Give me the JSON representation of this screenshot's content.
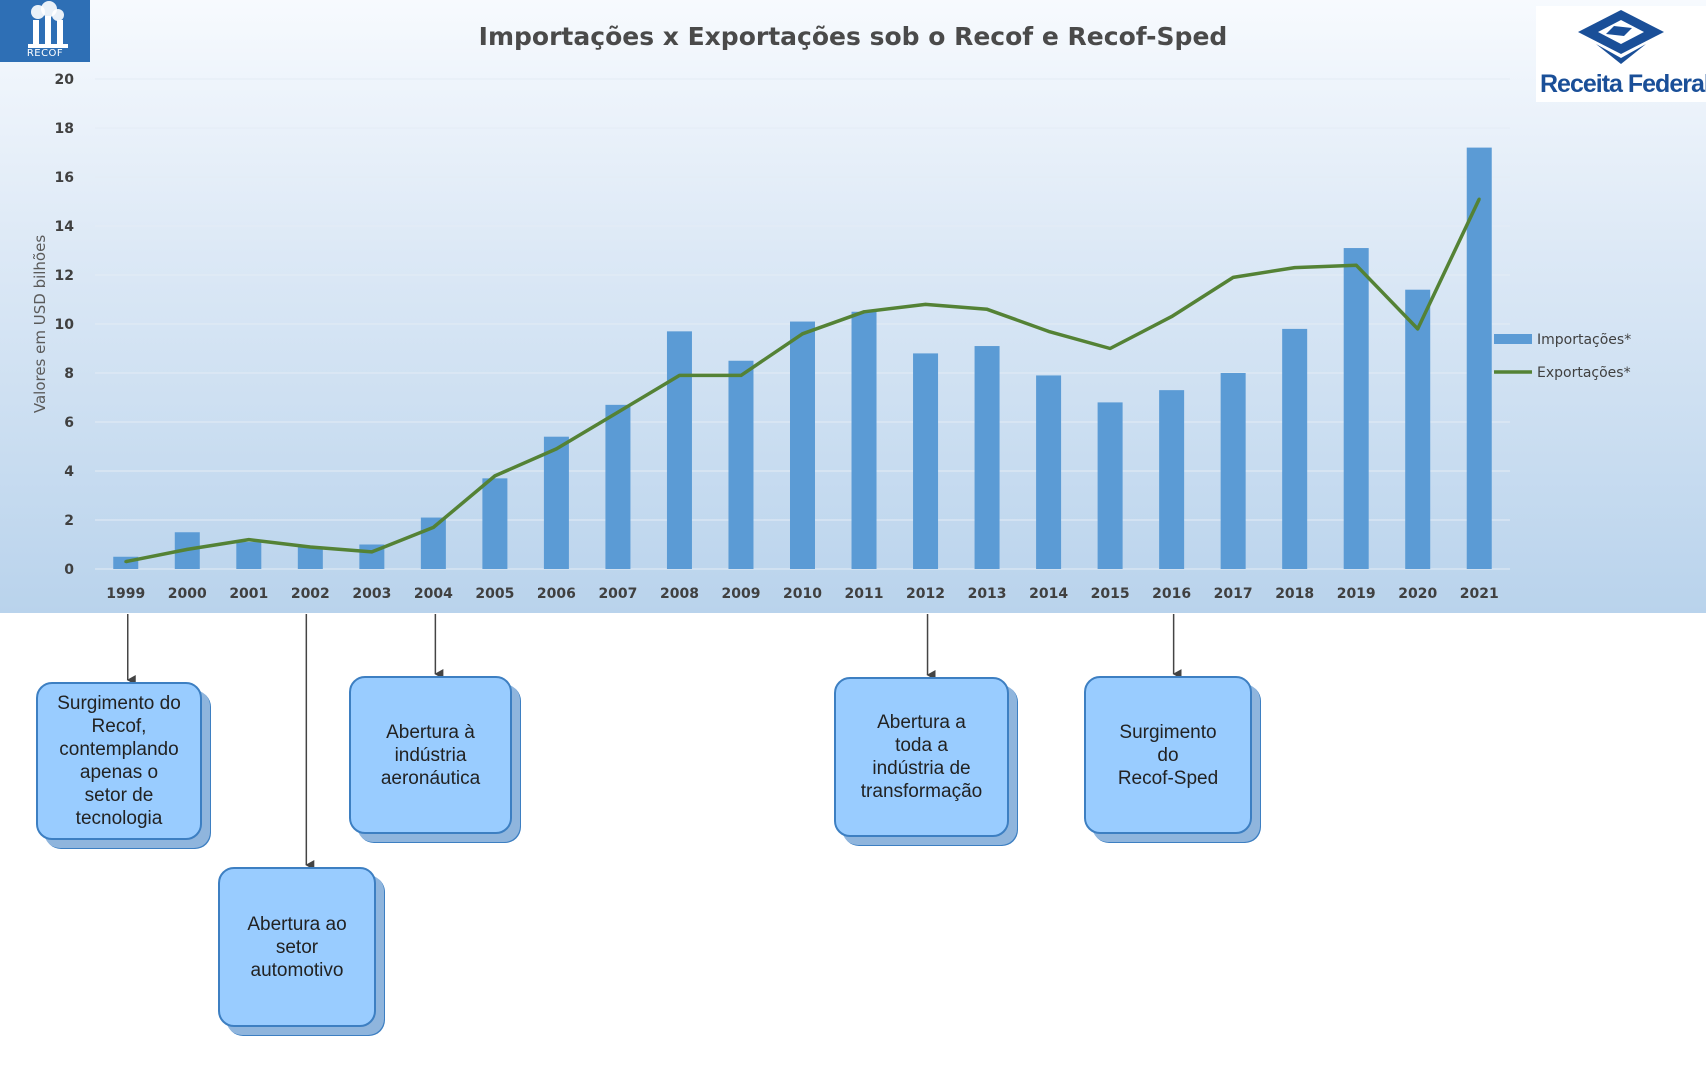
{
  "chart_data": {
    "type": "bar",
    "title": "Importações x Exportações sob o Recof e Recof-Sped",
    "ylabel": "Valores em USD bilhões",
    "xlabel": "",
    "ylim": [
      0,
      20
    ],
    "yticks": [
      0,
      2,
      4,
      6,
      8,
      10,
      12,
      14,
      16,
      18,
      20
    ],
    "grid": true,
    "legend_position": "right",
    "categories": [
      "1999",
      "2000",
      "2001",
      "2002",
      "2003",
      "2004",
      "2005",
      "2006",
      "2007",
      "2008",
      "2009",
      "2010",
      "2011",
      "2012",
      "2013",
      "2014",
      "2015",
      "2016",
      "2017",
      "2018",
      "2019",
      "2020",
      "2021"
    ],
    "series": [
      {
        "name": "Importações*",
        "type": "bar",
        "color": "#5b9bd5",
        "values": [
          0.5,
          1.5,
          1.1,
          0.9,
          1.0,
          2.1,
          3.7,
          5.4,
          6.7,
          9.7,
          8.5,
          10.1,
          10.5,
          8.8,
          9.1,
          7.9,
          6.8,
          7.3,
          8.0,
          9.8,
          13.1,
          11.4,
          17.2
        ]
      },
      {
        "name": "Exportações*",
        "type": "line",
        "color": "#548235",
        "values": [
          0.3,
          0.8,
          1.2,
          0.9,
          0.7,
          1.7,
          3.8,
          4.9,
          6.4,
          7.9,
          7.9,
          9.6,
          10.5,
          10.8,
          10.6,
          9.7,
          9.0,
          10.3,
          11.9,
          12.3,
          12.4,
          9.8,
          15.1
        ]
      }
    ]
  },
  "logos": {
    "recof": {
      "text": "RECOF",
      "icon": "factory-icon",
      "color": "#2e6fb5"
    },
    "receita": {
      "text": "Receita Federal",
      "icon": "receita-federal-emblem-icon",
      "color": "#1a4f98"
    }
  },
  "milestones": [
    {
      "year": "1999",
      "text": "Surgimento do\nRecof,\ncontemplando\napenas o\nsetor de\ntecnologia"
    },
    {
      "year": "2002",
      "text": "Abertura ao\nsetor\nautomotivo"
    },
    {
      "year": "2004",
      "text": "Abertura à\nindústria\naeronáutica"
    },
    {
      "year": "2012",
      "text": "Abertura a\ntoda a\nindústria de\ntransformação"
    },
    {
      "year": "2016",
      "text": "Surgimento\ndo\nRecof-Sped"
    }
  ]
}
